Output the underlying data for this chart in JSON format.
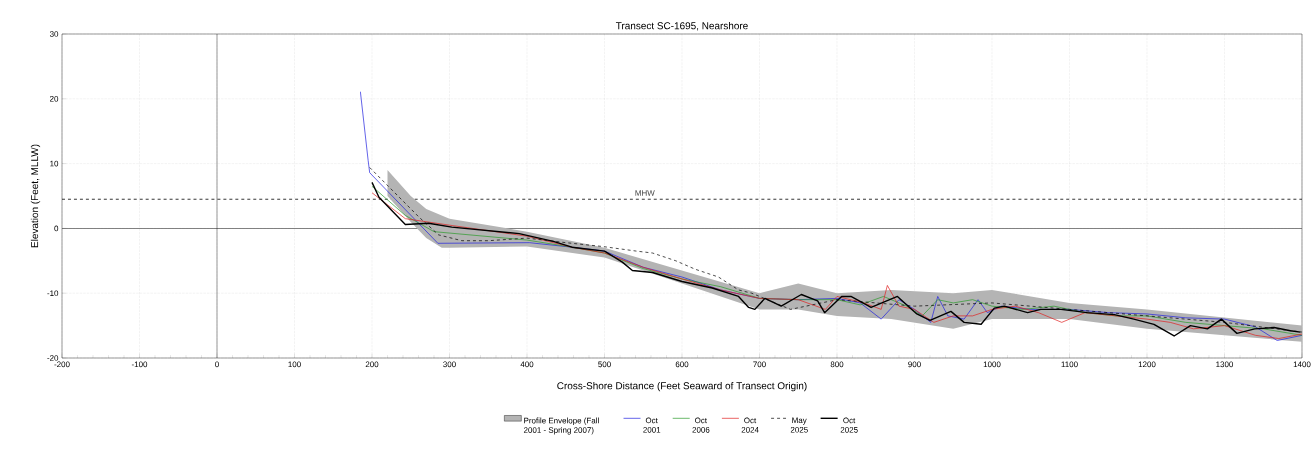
{
  "chart_data": {
    "type": "line",
    "title": "Transect  SC-1695, Nearshore",
    "xlabel": "Cross-Shore Distance (Feet Seaward of Transect Origin)",
    "ylabel": "Elevation (Feet, MLLW)",
    "xlim": [
      -200,
      1400
    ],
    "ylim": [
      -20,
      30
    ],
    "xticks": [
      -200,
      -100,
      0,
      100,
      200,
      300,
      400,
      500,
      600,
      700,
      800,
      900,
      1000,
      1100,
      1200,
      1300,
      1400
    ],
    "yticks": [
      -20,
      -10,
      0,
      10,
      20,
      30
    ],
    "grid": true,
    "legend": "bottom",
    "ref_lines": [
      {
        "axis": "y",
        "value": 0,
        "color": "#505050",
        "line_style": "solid"
      },
      {
        "axis": "x",
        "value": 0,
        "color": "#000000",
        "line_style": "solid"
      },
      {
        "axis": "y",
        "value": 4.5,
        "label": "MHW",
        "color": "#000000",
        "line_style": "dashed"
      }
    ],
    "series": [
      {
        "name": "Profile Envelope (Fall 2001 - Spring 2007)",
        "color": "#b4b4b4",
        "x": [
          220,
          250,
          270,
          290,
          300,
          400,
          500,
          700,
          750,
          800,
          870,
          950,
          1000,
          1100,
          1200,
          1400
        ],
        "values": [
          null,
          null,
          null,
          null,
          null,
          null,
          null,
          null,
          null,
          null,
          null,
          null,
          null,
          null,
          null,
          null
        ],
        "lower": [
          5,
          1,
          -1.5,
          -3,
          -3,
          -2.8,
          -4.5,
          -12.5,
          -12.5,
          -13.5,
          -14,
          -15.5,
          -14,
          -14,
          -15.5,
          -17.5
        ],
        "upper": [
          9,
          5,
          3,
          2,
          1.5,
          -0.5,
          -3,
          -10,
          -8.5,
          -10,
          -9.5,
          -10,
          -9.5,
          -11.5,
          -12.5,
          -15
        ]
      },
      {
        "name": "Oct 2001",
        "color": "#2020e0",
        "line_style": "solid",
        "x": [
          185,
          195,
          197,
          285,
          403,
          458,
          500,
          550,
          600,
          650,
          700,
          750,
          800,
          830,
          857,
          880,
          900,
          921,
          930,
          943,
          964,
          982,
          994,
          1012,
          1050,
          1100,
          1150,
          1200,
          1250,
          1300,
          1340,
          1368,
          1400
        ],
        "values": [
          21.1,
          10.5,
          8.6,
          -2.3,
          -2.2,
          -2.9,
          -3.5,
          -6,
          -7.5,
          -9.5,
          -10.8,
          -11,
          -10.8,
          -11.5,
          -14,
          -11,
          -12.5,
          -14.5,
          -10.5,
          -13.5,
          -14,
          -11,
          -13,
          -12,
          -12.5,
          -12.5,
          -13,
          -13.2,
          -13.8,
          -14,
          -15.2,
          -17.3,
          -16.5
        ]
      },
      {
        "name": "Oct 2006",
        "color": "#2a9a2a",
        "line_style": "solid",
        "x": [
          200,
          243,
          280,
          400,
          458,
          500,
          550,
          600,
          650,
          700,
          750,
          800,
          830,
          860,
          890,
          910,
          930,
          950,
          975,
          1000,
          1040,
          1080,
          1120,
          1160,
          1200,
          1250,
          1300,
          1350,
          1400
        ],
        "values": [
          6.5,
          2,
          -0.5,
          -1.8,
          -2.9,
          -3.8,
          -6.2,
          -7.8,
          -9,
          -10.8,
          -11,
          -11,
          -11.8,
          -10.5,
          -12,
          -13.5,
          -11,
          -11.5,
          -11,
          -12,
          -12.5,
          -12,
          -13,
          -13.5,
          -13.5,
          -14.5,
          -15,
          -15.5,
          -16.5
        ]
      },
      {
        "name": "Oct 2024",
        "color": "#e02020",
        "line_style": "solid",
        "x": [
          200,
          243,
          300,
          400,
          458,
          500,
          550,
          600,
          650,
          700,
          750,
          785,
          800,
          835,
          857,
          865,
          880,
          900,
          925,
          950,
          975,
          1000,
          1030,
          1060,
          1090,
          1120,
          1160,
          1200,
          1230,
          1260,
          1300,
          1340,
          1370,
          1400
        ],
        "values": [
          5.5,
          1.5,
          0.5,
          -1.2,
          -2.9,
          -3.8,
          -6,
          -7.8,
          -9.5,
          -10.8,
          -11,
          -12.5,
          -10.5,
          -11.5,
          -12.5,
          -8.8,
          -12,
          -12.5,
          -14.5,
          -13.5,
          -13.5,
          -12.5,
          -12,
          -13,
          -14.5,
          -13,
          -13.5,
          -14,
          -14.5,
          -15.5,
          -15,
          -16.5,
          -17,
          -16.3
        ]
      },
      {
        "name": "May 2025",
        "color": "#000000",
        "line_style": "dashed",
        "x": [
          197,
          261,
          286,
          316,
          350,
          400,
          450,
          498,
          541,
          562,
          592,
          617,
          647,
          673,
          690,
          740,
          800,
          900,
          1000,
          1100,
          1200,
          1300,
          1400
        ],
        "values": [
          9.4,
          1.7,
          -1,
          -1.9,
          -1.9,
          -1.5,
          -2.2,
          -2.8,
          -3.5,
          -3.8,
          -5,
          -6.3,
          -7.5,
          -9.5,
          -10,
          -12.5,
          -11,
          -12,
          -11.5,
          -12.5,
          -13.5,
          -14.5,
          -16
        ]
      },
      {
        "name": "Oct 2025",
        "color": "#000000",
        "line_style": "solid",
        "x": [
          200,
          209,
          243,
          273,
          303,
          390,
          434,
          458,
          500,
          523,
          536,
          562,
          600,
          639,
          673,
          686,
          694,
          707,
          728,
          754,
          775,
          784,
          806,
          818,
          844,
          878,
          903,
          920,
          947,
          964,
          986,
          1003,
          1016,
          1046,
          1063,
          1089,
          1123,
          1158,
          1183,
          1209,
          1235,
          1256,
          1278,
          1296,
          1316,
          1339,
          1364,
          1385,
          1398
        ],
        "values": [
          7.1,
          4.8,
          0.6,
          0.8,
          0.2,
          -0.8,
          -2,
          -2.9,
          -3.5,
          -5.2,
          -6.5,
          -6.8,
          -8.2,
          -9.2,
          -10.5,
          -12.2,
          -12.5,
          -10.8,
          -12,
          -10.2,
          -11.2,
          -13,
          -10.5,
          -10.5,
          -12.2,
          -10.5,
          -13.2,
          -14.2,
          -12.8,
          -14.5,
          -14.8,
          -12.3,
          -12,
          -13,
          -12.5,
          -12.5,
          -13,
          -13.3,
          -14,
          -14.8,
          -16.6,
          -15,
          -15.5,
          -14,
          -16.2,
          -15.5,
          -15.3,
          -15.8,
          -16
        ]
      }
    ]
  }
}
